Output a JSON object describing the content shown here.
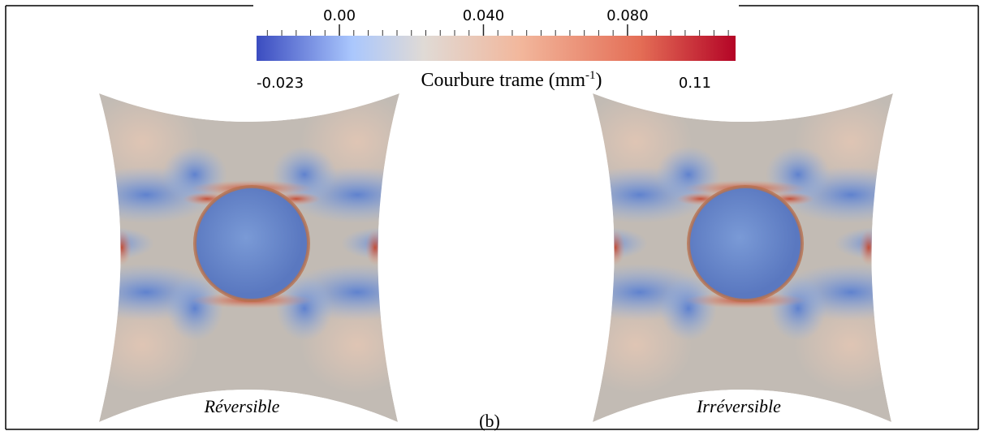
{
  "colorbar": {
    "min": -0.023,
    "max": 0.11,
    "ticks": [
      {
        "value": 0,
        "label": "0.00"
      },
      {
        "value": 0.04,
        "label": "0.040"
      },
      {
        "value": 0.08,
        "label": "0.080"
      }
    ],
    "label": {
      "text": "Courbure trame (mm",
      "superscript": "-1",
      "suffix": ")"
    }
  },
  "panels": [
    {
      "caption": "Réversible"
    },
    {
      "caption": "Irréversible"
    }
  ],
  "figure_label": "(b)"
}
